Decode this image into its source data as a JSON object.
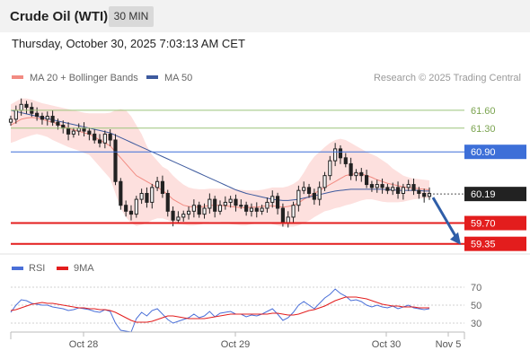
{
  "header": {
    "title": "Crude Oil (WTI)",
    "timeframe": "30 MIN",
    "timestamp": "Thursday, October 30, 2025 7:03:13 AM CET"
  },
  "chart_data": [
    {
      "type": "candlestick",
      "legend": [
        {
          "label": "MA 20 + Bollinger Bands",
          "color": "#f28b82"
        },
        {
          "label": "MA 50",
          "color": "#3d5a9e"
        }
      ],
      "credit": "Research © 2025 Trading Central",
      "ylim": [
        59.3,
        61.75
      ],
      "x_ticks": [
        "Oct 28",
        "Oct 29",
        "Oct 30",
        "Nov 5"
      ],
      "levels": [
        {
          "value": 61.6,
          "label": "61.60",
          "kind": "resistance-light",
          "color": "#9bc47a"
        },
        {
          "value": 61.3,
          "label": "61.30",
          "kind": "resistance-light",
          "color": "#9bc47a"
        },
        {
          "value": 60.9,
          "label": "60.90",
          "kind": "pivot",
          "color": "#3d6fd8"
        },
        {
          "value": 60.19,
          "label": "60.19",
          "kind": "last-price",
          "color": "#222222"
        },
        {
          "value": 59.7,
          "label": "59.70",
          "kind": "support",
          "color": "#e31d1d"
        },
        {
          "value": 59.35,
          "label": "59.35",
          "kind": "support",
          "color": "#e31d1d"
        }
      ],
      "close": [
        61.45,
        61.6,
        61.7,
        61.65,
        61.55,
        61.5,
        61.45,
        61.5,
        61.4,
        61.35,
        61.3,
        61.2,
        61.25,
        61.3,
        61.25,
        61.2,
        61.1,
        61.05,
        61.2,
        61.1,
        60.4,
        60.0,
        59.9,
        59.85,
        60.1,
        60.2,
        60.05,
        60.3,
        60.4,
        60.2,
        59.9,
        59.75,
        59.8,
        59.85,
        59.9,
        60.0,
        59.85,
        59.95,
        60.1,
        59.9,
        60.0,
        60.05,
        60.1,
        60.0,
        60.0,
        59.9,
        59.95,
        59.9,
        59.95,
        60.05,
        60.15,
        59.95,
        59.7,
        59.8,
        60.0,
        60.25,
        60.3,
        60.2,
        60.1,
        60.3,
        60.5,
        60.75,
        60.95,
        60.8,
        60.7,
        60.5,
        60.55,
        60.5,
        60.35,
        60.3,
        60.35,
        60.3,
        60.25,
        60.3,
        60.2,
        60.3,
        60.35,
        60.25,
        60.2,
        60.15,
        60.2
      ],
      "ma20": [
        61.35,
        61.4,
        61.45,
        61.47,
        61.48,
        61.47,
        61.45,
        61.42,
        61.4,
        61.37,
        61.33,
        61.3,
        61.27,
        61.25,
        61.22,
        61.2,
        61.15,
        61.1,
        61.05,
        61.0,
        60.9,
        60.8,
        60.7,
        60.6,
        60.5,
        60.45,
        60.4,
        60.35,
        60.3,
        60.25,
        60.18,
        60.1,
        60.05,
        60.0,
        59.98,
        59.97,
        59.97,
        59.98,
        60.0,
        60.0,
        60.0,
        59.99,
        59.98,
        59.97,
        59.96,
        59.96,
        59.97,
        59.97,
        59.98,
        59.99,
        59.99,
        59.98,
        59.97,
        59.98,
        60.0,
        60.04,
        60.1,
        60.15,
        60.2,
        60.25,
        60.3,
        60.35,
        60.4,
        60.45,
        60.5,
        60.52,
        60.53,
        60.53,
        60.5,
        60.47,
        60.43,
        60.4,
        60.37,
        60.35,
        60.33,
        60.31,
        60.3,
        60.29,
        60.28,
        60.27,
        60.26
      ],
      "bb_upper": [
        61.7,
        61.75,
        61.8,
        61.8,
        61.78,
        61.75,
        61.72,
        61.7,
        61.68,
        61.66,
        61.64,
        61.62,
        61.6,
        61.58,
        61.56,
        61.55,
        61.55,
        61.55,
        61.55,
        61.56,
        61.6,
        61.62,
        61.6,
        61.5,
        61.35,
        61.2,
        61.0,
        60.85,
        60.75,
        60.65,
        60.6,
        60.5,
        60.42,
        60.35,
        60.3,
        60.28,
        60.27,
        60.27,
        60.28,
        60.28,
        60.28,
        60.28,
        60.28,
        60.27,
        60.26,
        60.25,
        60.25,
        60.25,
        60.26,
        60.28,
        60.3,
        60.3,
        60.3,
        60.32,
        60.36,
        60.42,
        60.55,
        60.7,
        60.82,
        60.9,
        60.98,
        61.05,
        61.1,
        61.12,
        61.1,
        61.05,
        61.0,
        60.95,
        60.9,
        60.86,
        60.82,
        60.76,
        60.7,
        60.62,
        60.56,
        60.5,
        60.47,
        60.45,
        60.44,
        60.43,
        60.42
      ],
      "bb_lower": [
        61.05,
        61.08,
        61.12,
        61.15,
        61.18,
        61.2,
        61.18,
        61.15,
        61.1,
        61.06,
        61.02,
        60.98,
        60.95,
        60.92,
        60.88,
        60.85,
        60.75,
        60.65,
        60.55,
        60.45,
        60.2,
        59.95,
        59.8,
        59.7,
        59.65,
        59.67,
        59.7,
        59.75,
        59.78,
        59.78,
        59.75,
        59.7,
        59.68,
        59.67,
        59.66,
        59.66,
        59.67,
        59.69,
        59.72,
        59.72,
        59.72,
        59.7,
        59.68,
        59.67,
        59.66,
        59.66,
        59.68,
        59.69,
        59.7,
        59.7,
        59.68,
        59.66,
        59.64,
        59.64,
        59.64,
        59.66,
        59.7,
        59.74,
        59.8,
        59.85,
        59.9,
        59.92,
        59.95,
        59.97,
        60.0,
        60.02,
        60.05,
        60.08,
        60.1,
        60.1,
        60.08,
        60.06,
        60.05,
        60.05,
        60.05,
        60.06,
        60.08,
        60.1,
        60.11,
        60.12,
        60.12
      ],
      "ma50": [
        61.6,
        61.58,
        61.56,
        61.54,
        61.52,
        61.5,
        61.48,
        61.46,
        61.44,
        61.42,
        61.4,
        61.38,
        61.36,
        61.34,
        61.32,
        61.3,
        61.28,
        61.26,
        61.24,
        61.22,
        61.18,
        61.14,
        61.1,
        61.06,
        61.02,
        60.98,
        60.94,
        60.9,
        60.86,
        60.82,
        60.78,
        60.74,
        60.7,
        60.66,
        60.62,
        60.58,
        60.54,
        60.5,
        60.46,
        60.42,
        60.38,
        60.34,
        60.3,
        60.26,
        60.23,
        60.2,
        60.18,
        60.16,
        60.14,
        60.12,
        60.1,
        60.09,
        60.08,
        60.08,
        60.09,
        60.1,
        60.12,
        60.14,
        60.16,
        60.18,
        60.2,
        60.22,
        60.24,
        60.25,
        60.26,
        60.27,
        60.27,
        60.27,
        60.27,
        60.27,
        60.27,
        60.27,
        60.26,
        60.26,
        60.25,
        60.25,
        60.25,
        60.25,
        60.25,
        60.24,
        60.24
      ],
      "forecast": {
        "from": 60.19,
        "to": 59.35
      }
    },
    {
      "type": "line",
      "legend": [
        {
          "label": "RSI",
          "color": "#4a6fd8"
        },
        {
          "label": "9MA",
          "color": "#e31d1d"
        }
      ],
      "ylim": [
        20,
        80
      ],
      "y_ticks": [
        70,
        50,
        30
      ],
      "rsi": [
        42,
        50,
        56,
        55,
        52,
        51,
        50,
        50,
        48,
        47,
        46,
        44,
        45,
        47,
        46,
        45,
        43,
        42,
        45,
        43,
        30,
        22,
        21,
        20,
        35,
        42,
        38,
        44,
        46,
        40,
        34,
        30,
        32,
        34,
        36,
        40,
        36,
        38,
        43,
        37,
        41,
        42,
        43,
        40,
        40,
        37,
        39,
        38,
        40,
        43,
        46,
        40,
        33,
        36,
        42,
        50,
        54,
        50,
        46,
        52,
        58,
        62,
        68,
        63,
        60,
        55,
        56,
        54,
        50,
        48,
        50,
        48,
        47,
        49,
        46,
        48,
        50,
        47,
        46,
        45,
        46
      ],
      "rsi_ma": [
        44,
        45,
        47,
        49,
        51,
        52,
        53,
        52,
        52,
        51,
        50,
        49,
        48,
        47,
        47,
        46,
        46,
        45,
        45,
        44,
        42,
        39,
        36,
        33,
        31,
        31,
        31,
        32,
        34,
        36,
        38,
        38,
        37,
        36,
        35,
        35,
        35,
        35,
        36,
        37,
        38,
        39,
        40,
        40,
        40,
        40,
        40,
        40,
        40,
        40,
        41,
        41,
        40,
        39,
        39,
        40,
        42,
        44,
        45,
        47,
        49,
        52,
        55,
        57,
        59,
        59,
        59,
        58,
        57,
        55,
        53,
        51,
        50,
        49,
        49,
        48,
        48,
        48,
        47,
        47,
        47
      ]
    }
  ]
}
